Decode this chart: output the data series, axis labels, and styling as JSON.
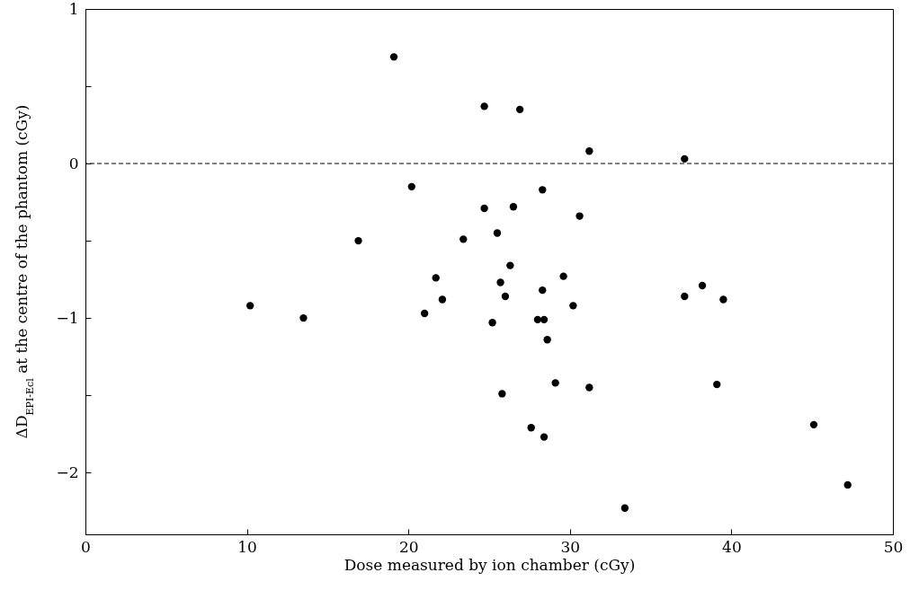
{
  "chart_data": {
    "type": "scatter",
    "xlabel": "Dose measured by ion chamber   (cGy)",
    "ylabel": "ΔD$_{EPI-Ecl}$ at the centre of the phantom  (cGy)",
    "x": [
      10.2,
      13.5,
      16.9,
      19.1,
      20.2,
      21.0,
      21.7,
      22.1,
      23.4,
      24.7,
      24.7,
      25.2,
      25.5,
      25.7,
      25.8,
      26.0,
      26.3,
      26.5,
      26.9,
      27.6,
      28.0,
      28.3,
      28.3,
      28.4,
      28.4,
      28.6,
      29.1,
      29.6,
      30.2,
      30.6,
      31.2,
      31.2,
      33.4,
      37.1,
      37.1,
      38.2,
      39.1,
      39.5,
      45.1,
      47.2
    ],
    "series": [
      {
        "color": "#000000",
        "values": [
          -0.92,
          -1.0,
          -0.5,
          0.69,
          -0.15,
          -0.97,
          -0.74,
          -0.88,
          -0.49,
          0.37,
          -0.29,
          -1.03,
          -0.45,
          -0.77,
          -1.49,
          -0.86,
          -0.66,
          -0.28,
          0.35,
          -1.71,
          -1.01,
          -0.17,
          -0.82,
          -1.01,
          -1.77,
          -1.14,
          -1.42,
          -0.73,
          -0.92,
          -0.34,
          0.08,
          -1.45,
          -2.23,
          0.03,
          -0.86,
          -0.79,
          -1.43,
          -0.88,
          -1.69,
          -2.08
        ]
      }
    ],
    "marker": "circle",
    "xlim": [
      0,
      50
    ],
    "xticks": [
      0,
      10,
      20,
      30,
      40,
      50
    ],
    "ylim": [
      -2.4,
      1
    ],
    "yticks": [
      {
        "value": -2,
        "label": "−2"
      },
      {
        "value": -1.5,
        "label": null
      },
      {
        "value": -1,
        "label": "−1"
      },
      {
        "value": -0.5,
        "label": null
      },
      0,
      {
        "value": 0.5,
        "label": null
      },
      1
    ],
    "ref_lines": [
      {
        "axis": "y",
        "value": 0,
        "color": "#000000",
        "line_style": "dashed"
      }
    ],
    "grid": false
  }
}
